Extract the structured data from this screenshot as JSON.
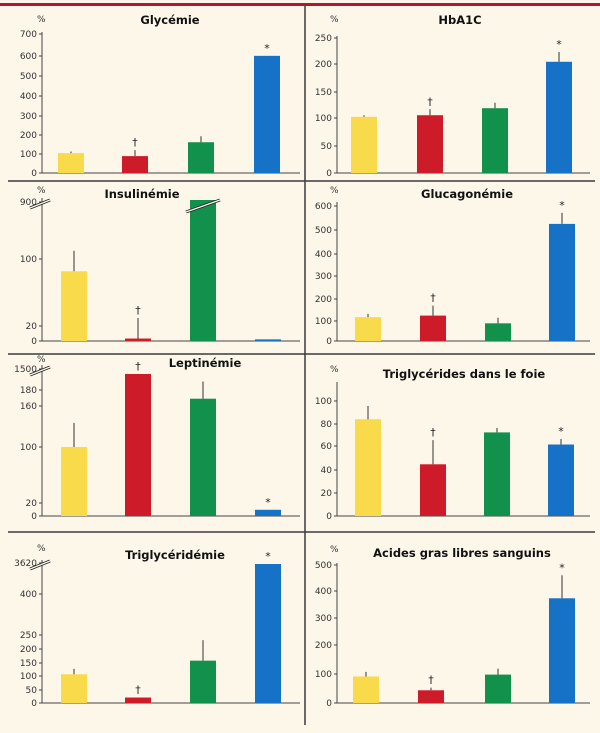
{
  "colors": [
    "#f9da4b",
    "#cd1b29",
    "#12914d",
    "#1672c7"
  ],
  "chart_data": [
    {
      "type": "bar",
      "title": "Glycémie",
      "ylabel": "%",
      "ylim": [
        0,
        700
      ],
      "yticks": [
        "0",
        "100",
        "200",
        "300",
        "400",
        "500",
        "600",
        "700"
      ],
      "values": [
        100,
        85,
        155,
        590
      ],
      "errors": [
        8,
        30,
        30,
        0
      ],
      "marks": [
        "",
        "†",
        "",
        "*"
      ]
    },
    {
      "type": "bar",
      "title": "HbA1C",
      "ylabel": "%",
      "ylim": [
        0,
        250
      ],
      "yticks": [
        "0",
        "50",
        "100",
        "150",
        "200",
        "250"
      ],
      "values": [
        104,
        107,
        120,
        206
      ],
      "errors": [
        3,
        11,
        10,
        18
      ],
      "marks": [
        "",
        "†",
        "",
        "*"
      ]
    },
    {
      "type": "bar",
      "title": "Insulinémie",
      "ylabel": "%",
      "ylim": [
        0,
        150
      ],
      "axis_break": true,
      "yticks": [
        "0",
        "20",
        "100",
        "900"
      ],
      "values": [
        85,
        3,
        900,
        2
      ],
      "errors": [
        25,
        25,
        0,
        0
      ],
      "marks": [
        "",
        "†",
        "",
        ""
      ]
    },
    {
      "type": "bar",
      "title": "Glucagonémie",
      "ylabel": "%",
      "ylim": [
        0,
        620
      ],
      "yticks": [
        "0",
        "100",
        "200",
        "300",
        "400",
        "500",
        "600"
      ],
      "values": [
        108,
        115,
        80,
        530
      ],
      "errors": [
        15,
        45,
        25,
        50
      ],
      "marks": [
        "",
        "†",
        "",
        "*"
      ]
    },
    {
      "type": "bar",
      "title": "Leptinémie",
      "ylabel": "%",
      "ylim": [
        0,
        200
      ],
      "axis_break": true,
      "yticks": [
        "0",
        "20",
        "100",
        "160",
        "180",
        "1500"
      ],
      "values": [
        100,
        1500,
        170,
        9
      ],
      "errors": [
        35,
        0,
        25,
        0
      ],
      "marks": [
        "",
        "†",
        "",
        "*"
      ]
    },
    {
      "type": "bar",
      "title": "Triglycérides dans le foie",
      "ylabel": "%",
      "ylim": [
        0,
        120
      ],
      "yticks": [
        "0",
        "20",
        "40",
        "60",
        "80",
        "100"
      ],
      "values": [
        88,
        47,
        76,
        65
      ],
      "errors": [
        12,
        22,
        4,
        5
      ],
      "marks": [
        "",
        "†",
        "",
        "*"
      ]
    },
    {
      "type": "bar",
      "title": "Triglycéridémie",
      "ylabel": "%",
      "ylim": [
        0,
        460
      ],
      "axis_break": true,
      "yticks": [
        "0",
        "50",
        "100",
        "150",
        "200",
        "250",
        "400",
        "3620"
      ],
      "values": [
        105,
        20,
        155,
        3620
      ],
      "errors": [
        20,
        0,
        75,
        0
      ],
      "marks": [
        "",
        "†",
        "",
        "*"
      ]
    },
    {
      "type": "bar",
      "title": "Acides gras libres sanguins",
      "ylabel": "%",
      "ylim": [
        0,
        510
      ],
      "yticks": [
        "0",
        "100",
        "200",
        "300",
        "400",
        "500"
      ],
      "values": [
        98,
        47,
        105,
        387
      ],
      "errors": [
        17,
        10,
        22,
        85
      ],
      "marks": [
        "",
        "†",
        "",
        "*"
      ]
    }
  ]
}
